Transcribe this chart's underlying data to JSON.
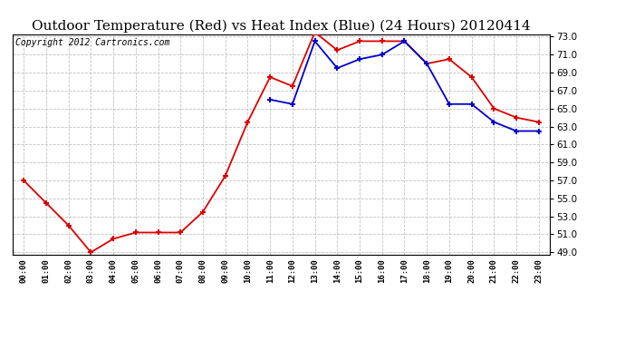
{
  "title": "Outdoor Temperature (Red) vs Heat Index (Blue) (24 Hours) 20120414",
  "copyright_text": "Copyright 2012 Cartronics.com",
  "x_labels": [
    "00:00",
    "01:00",
    "02:00",
    "03:00",
    "04:00",
    "05:00",
    "06:00",
    "07:00",
    "08:00",
    "09:00",
    "10:00",
    "11:00",
    "12:00",
    "13:00",
    "14:00",
    "15:00",
    "16:00",
    "17:00",
    "18:00",
    "19:00",
    "20:00",
    "21:00",
    "22:00",
    "23:00"
  ],
  "temp_red": [
    57.0,
    54.5,
    52.0,
    49.0,
    50.5,
    51.2,
    51.2,
    51.2,
    53.5,
    57.5,
    63.5,
    68.5,
    67.5,
    73.5,
    71.5,
    72.5,
    72.5,
    72.5,
    70.0,
    70.5,
    68.5,
    65.0,
    64.0,
    63.5
  ],
  "heat_blue": [
    null,
    null,
    null,
    null,
    null,
    null,
    null,
    null,
    null,
    null,
    null,
    66.0,
    65.5,
    72.5,
    69.5,
    70.5,
    71.0,
    72.5,
    70.0,
    65.5,
    65.5,
    63.5,
    62.5,
    62.5
  ],
  "ylim_min": 49.0,
  "ylim_max": 73.0,
  "yticks": [
    49.0,
    51.0,
    53.0,
    55.0,
    57.0,
    59.0,
    61.0,
    63.0,
    65.0,
    67.0,
    69.0,
    71.0,
    73.0
  ],
  "bg_color": "#ffffff",
  "plot_bg_color": "#ffffff",
  "grid_color": "#bbbbbb",
  "red_color": "#dd0000",
  "blue_color": "#0000cc",
  "title_fontsize": 11,
  "copyright_fontsize": 7,
  "figwidth": 6.9,
  "figheight": 3.75,
  "dpi": 100
}
